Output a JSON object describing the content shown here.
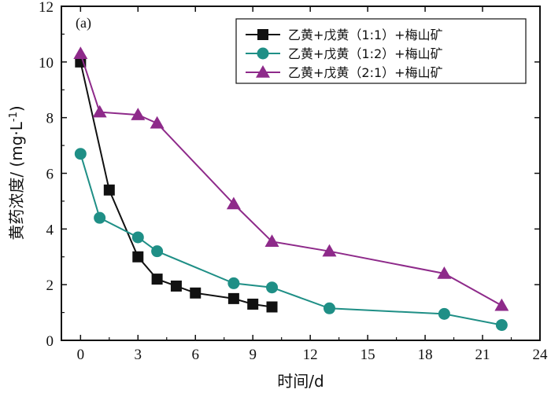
{
  "chart_data": {
    "type": "line",
    "panel_label": "(a)",
    "xlabel": "时间/d",
    "ylabel_main": "黄药浓度/ (mg·L",
    "ylabel_sup": "-1",
    "ylabel_close": ")",
    "xlim": [
      -1,
      24
    ],
    "ylim": [
      0,
      12
    ],
    "xticks": [
      0,
      3,
      6,
      9,
      12,
      15,
      18,
      21,
      24
    ],
    "yticks": [
      0,
      2,
      4,
      6,
      8,
      10,
      12
    ],
    "legend_position": "top-right",
    "series": [
      {
        "name": "乙黄+戊黄（1:1）+梅山矿",
        "color": "#111111",
        "marker": "square",
        "x": [
          0,
          1.5,
          3,
          4,
          5,
          6,
          8,
          9,
          10
        ],
        "y": [
          10.0,
          5.4,
          3.0,
          2.2,
          1.95,
          1.7,
          1.5,
          1.3,
          1.2
        ]
      },
      {
        "name": "乙黄+戊黄（1:2）+梅山矿",
        "color": "#1f8f86",
        "marker": "circle",
        "x": [
          0,
          1,
          3,
          4,
          8,
          10,
          13,
          19,
          22
        ],
        "y": [
          6.7,
          4.4,
          3.7,
          3.2,
          2.05,
          1.9,
          1.15,
          0.95,
          0.55
        ]
      },
      {
        "name": "乙黄+戊黄（2:1）+梅山矿",
        "color": "#8e2a8a",
        "marker": "triangle",
        "x": [
          0,
          1,
          3,
          4,
          8,
          10,
          13,
          19,
          22
        ],
        "y": [
          10.3,
          8.2,
          8.1,
          7.8,
          4.9,
          3.55,
          3.2,
          2.4,
          1.25
        ]
      }
    ]
  }
}
